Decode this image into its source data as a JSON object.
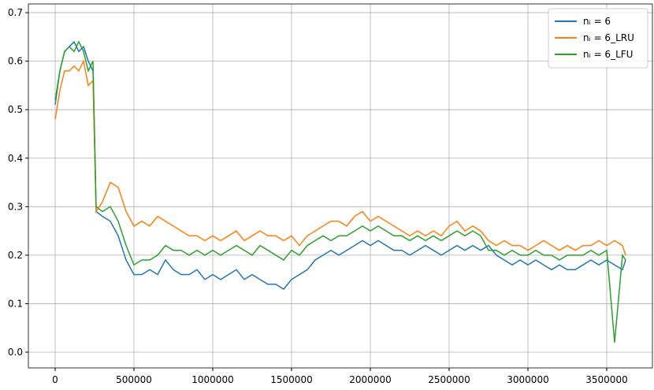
{
  "chart_data": {
    "type": "line",
    "x": [
      0,
      30000,
      60000,
      90000,
      120000,
      150000,
      180000,
      210000,
      240000,
      260000,
      300000,
      350000,
      400000,
      450000,
      500000,
      550000,
      600000,
      650000,
      700000,
      750000,
      800000,
      850000,
      900000,
      950000,
      1000000,
      1050000,
      1100000,
      1150000,
      1200000,
      1250000,
      1300000,
      1350000,
      1400000,
      1450000,
      1500000,
      1550000,
      1600000,
      1650000,
      1700000,
      1750000,
      1800000,
      1850000,
      1900000,
      1950000,
      2000000,
      2050000,
      2100000,
      2150000,
      2200000,
      2250000,
      2300000,
      2350000,
      2400000,
      2450000,
      2500000,
      2550000,
      2600000,
      2650000,
      2700000,
      2750000,
      2800000,
      2850000,
      2900000,
      2950000,
      3000000,
      3050000,
      3100000,
      3150000,
      3200000,
      3250000,
      3300000,
      3350000,
      3400000,
      3450000,
      3500000,
      3550000,
      3600000,
      3620000
    ],
    "series": [
      {
        "name": "nᵢ = 6",
        "color": "#1f77b4",
        "values": [
          0.51,
          0.58,
          0.62,
          0.63,
          0.64,
          0.62,
          0.63,
          0.6,
          0.58,
          0.29,
          0.28,
          0.27,
          0.24,
          0.19,
          0.16,
          0.16,
          0.17,
          0.16,
          0.19,
          0.17,
          0.16,
          0.16,
          0.17,
          0.15,
          0.16,
          0.15,
          0.16,
          0.17,
          0.15,
          0.16,
          0.15,
          0.14,
          0.14,
          0.13,
          0.15,
          0.16,
          0.17,
          0.19,
          0.2,
          0.21,
          0.2,
          0.21,
          0.22,
          0.23,
          0.22,
          0.23,
          0.22,
          0.21,
          0.21,
          0.2,
          0.21,
          0.22,
          0.21,
          0.2,
          0.21,
          0.22,
          0.21,
          0.22,
          0.21,
          0.22,
          0.2,
          0.19,
          0.18,
          0.19,
          0.18,
          0.19,
          0.18,
          0.17,
          0.18,
          0.17,
          0.17,
          0.18,
          0.19,
          0.18,
          0.19,
          0.18,
          0.17,
          0.19
        ]
      },
      {
        "name": "nᵢ = 6_LRU",
        "color": "#ff7f0e",
        "values": [
          0.48,
          0.54,
          0.58,
          0.58,
          0.59,
          0.58,
          0.6,
          0.55,
          0.56,
          0.29,
          0.31,
          0.35,
          0.34,
          0.29,
          0.26,
          0.27,
          0.26,
          0.28,
          0.27,
          0.26,
          0.25,
          0.24,
          0.24,
          0.23,
          0.24,
          0.23,
          0.24,
          0.25,
          0.23,
          0.24,
          0.25,
          0.24,
          0.24,
          0.23,
          0.24,
          0.22,
          0.24,
          0.25,
          0.26,
          0.27,
          0.27,
          0.26,
          0.28,
          0.29,
          0.27,
          0.28,
          0.27,
          0.26,
          0.25,
          0.24,
          0.25,
          0.24,
          0.25,
          0.24,
          0.26,
          0.27,
          0.25,
          0.26,
          0.25,
          0.23,
          0.22,
          0.23,
          0.22,
          0.22,
          0.21,
          0.22,
          0.23,
          0.22,
          0.21,
          0.22,
          0.21,
          0.22,
          0.22,
          0.23,
          0.22,
          0.23,
          0.22,
          0.2
        ]
      },
      {
        "name": "nᵢ = 6_LFU",
        "color": "#2ca02c",
        "values": [
          0.52,
          0.58,
          0.62,
          0.63,
          0.62,
          0.64,
          0.62,
          0.58,
          0.6,
          0.3,
          0.29,
          0.3,
          0.27,
          0.22,
          0.18,
          0.19,
          0.19,
          0.2,
          0.22,
          0.21,
          0.21,
          0.2,
          0.21,
          0.2,
          0.21,
          0.2,
          0.21,
          0.22,
          0.21,
          0.2,
          0.22,
          0.21,
          0.2,
          0.19,
          0.21,
          0.2,
          0.22,
          0.23,
          0.24,
          0.23,
          0.24,
          0.24,
          0.25,
          0.26,
          0.25,
          0.26,
          0.25,
          0.24,
          0.24,
          0.23,
          0.24,
          0.23,
          0.24,
          0.23,
          0.24,
          0.25,
          0.24,
          0.25,
          0.24,
          0.21,
          0.21,
          0.2,
          0.21,
          0.2,
          0.2,
          0.21,
          0.2,
          0.2,
          0.19,
          0.2,
          0.2,
          0.2,
          0.21,
          0.2,
          0.21,
          0.02,
          0.2,
          0.19
        ]
      }
    ],
    "xlim": [
      -170000,
      3790000
    ],
    "ylim": [
      -0.0325,
      0.718
    ],
    "xticks": [
      0,
      500000,
      1000000,
      1500000,
      2000000,
      2500000,
      3000000,
      3500000
    ],
    "yticks": [
      {
        "value": 0,
        "label": "0.0"
      },
      0.1,
      0.2,
      0.3,
      0.4,
      0.5,
      0.6,
      0.7
    ],
    "grid": true,
    "legend": "upper right"
  }
}
